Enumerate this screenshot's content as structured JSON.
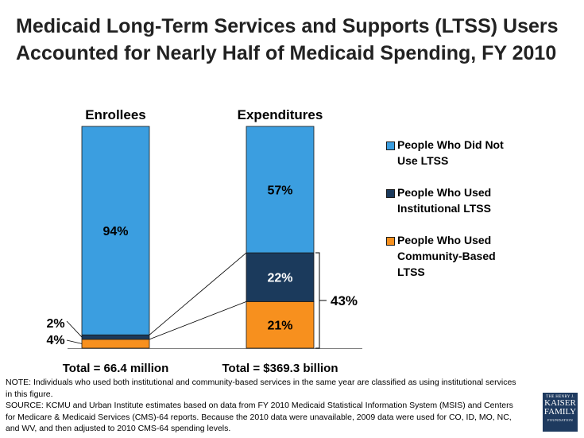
{
  "title": {
    "line1": "Medicaid Long-Term Services and Supports (LTSS) Users",
    "line2": "Accounted for Nearly Half of Medicaid Spending, FY 2010"
  },
  "chart_data": {
    "type": "bar",
    "stacked": true,
    "categories": [
      "Enrollees",
      "Expenditures"
    ],
    "series": [
      {
        "name": "People Who Used Community-Based LTSS",
        "values": [
          4,
          21
        ],
        "labels": [
          "4%",
          "21%"
        ],
        "color": "#f7901e"
      },
      {
        "name": "People Who Used Institutional LTSS",
        "values": [
          2,
          22
        ],
        "labels": [
          "2%",
          "22%"
        ],
        "color": "#1b3a5c"
      },
      {
        "name": "People Who Did Not Use LTSS",
        "values": [
          94,
          57
        ],
        "labels": [
          "94%",
          "57%"
        ],
        "color": "#3b9ee0"
      }
    ],
    "totals": [
      "Total = 66.4 million",
      "Total = $369.3 billion"
    ],
    "bracket_label": "43%",
    "ylim": [
      0,
      100
    ],
    "legend": [
      {
        "lines": [
          "People Who Did Not",
          "Use LTSS"
        ],
        "color": "#3b9ee0"
      },
      {
        "lines": [
          "People Who Used",
          "Institutional LTSS"
        ],
        "color": "#1b3a5c"
      },
      {
        "lines": [
          "People Who Used",
          "Community-Based",
          "LTSS"
        ],
        "color": "#f7901e"
      }
    ],
    "legend_position": "right"
  },
  "note": {
    "line1": "NOTE: Individuals who used both institutional and community-based services in the same year are classified as using institutional services",
    "line2": "in this figure.",
    "line3": "SOURCE: KCMU and Urban Institute estimates based on data from FY 2010 Medicaid Statistical Information System (MSIS) and Centers",
    "line4": "for Medicare & Medicaid Services (CMS)-64 reports. Because the 2010 data were unavailable, 2009 data were used for CO, ID, MO, NC,",
    "line5": "and WV, and then adjusted to 2010 CMS-64 spending levels."
  },
  "logo": {
    "line1": "THE HENRY J.",
    "line2": "KAISER",
    "line3": "FAMILY",
    "line4": "FOUNDATION"
  }
}
